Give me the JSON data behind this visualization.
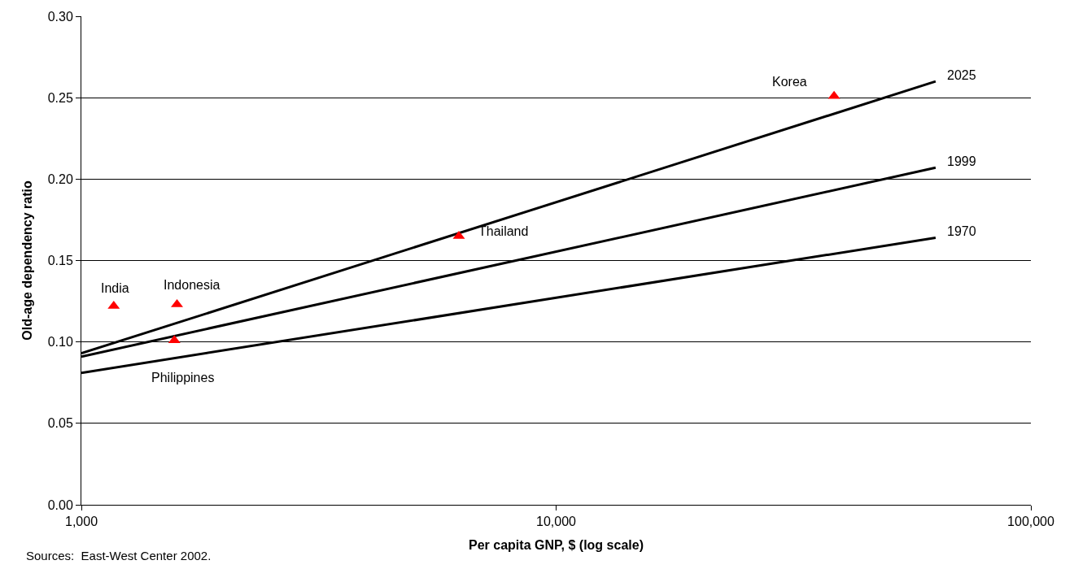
{
  "chart_data": {
    "type": "line",
    "xlabel": "Per capita GNP, $ (log scale)",
    "ylabel": "Old-age dependency ratio",
    "log": "x",
    "grid": "y",
    "line_style": "solid",
    "xlim": [
      1000,
      100000
    ],
    "xticks": [
      {
        "value": 1000,
        "label": "1,000"
      },
      {
        "value": 10000,
        "label": "10,000"
      },
      {
        "value": 100000,
        "label": "100,000"
      }
    ],
    "ylim": [
      0,
      0.3
    ],
    "yticks": [
      {
        "value": 0,
        "label": "0.00"
      },
      {
        "value": 0.05,
        "label": "0.05"
      },
      {
        "value": 0.1,
        "label": "0.10"
      },
      {
        "value": 0.15,
        "label": "0.15"
      },
      {
        "value": 0.2,
        "label": "0.20"
      },
      {
        "value": 0.25,
        "label": "0.25"
      },
      {
        "value": 0.3,
        "label": "0.30"
      }
    ],
    "series": [
      {
        "name": "2025",
        "color": "#000000",
        "marker": "none",
        "x": [
          1000,
          63000
        ],
        "values": [
          0.093,
          0.26
        ]
      },
      {
        "name": "1999",
        "color": "#000000",
        "marker": "none",
        "x": [
          1000,
          63000
        ],
        "values": [
          0.091,
          0.207
        ]
      },
      {
        "name": "1970",
        "color": "#000000",
        "marker": "none",
        "x": [
          1000,
          63000
        ],
        "values": [
          0.081,
          0.164
        ]
      },
      {
        "type": "scatter",
        "color": "#ff0000",
        "marker": "triangle",
        "x": [
          1170,
          1590,
          1570,
          6240,
          38500
        ],
        "values": [
          0.122,
          0.123,
          0.101,
          0.165,
          0.251
        ]
      }
    ],
    "annotations": [
      {
        "text": "India",
        "x": 1170,
        "y": 0.122
      },
      {
        "text": "Indonesia",
        "x": 1590,
        "y": 0.123
      },
      {
        "text": "Philippines",
        "x": 1570,
        "y": 0.101
      },
      {
        "text": "Thailand",
        "x": 6240,
        "y": 0.165
      },
      {
        "text": "Korea",
        "x": 38500,
        "y": 0.251
      },
      "Sources:  East-West Center 2002."
    ]
  }
}
